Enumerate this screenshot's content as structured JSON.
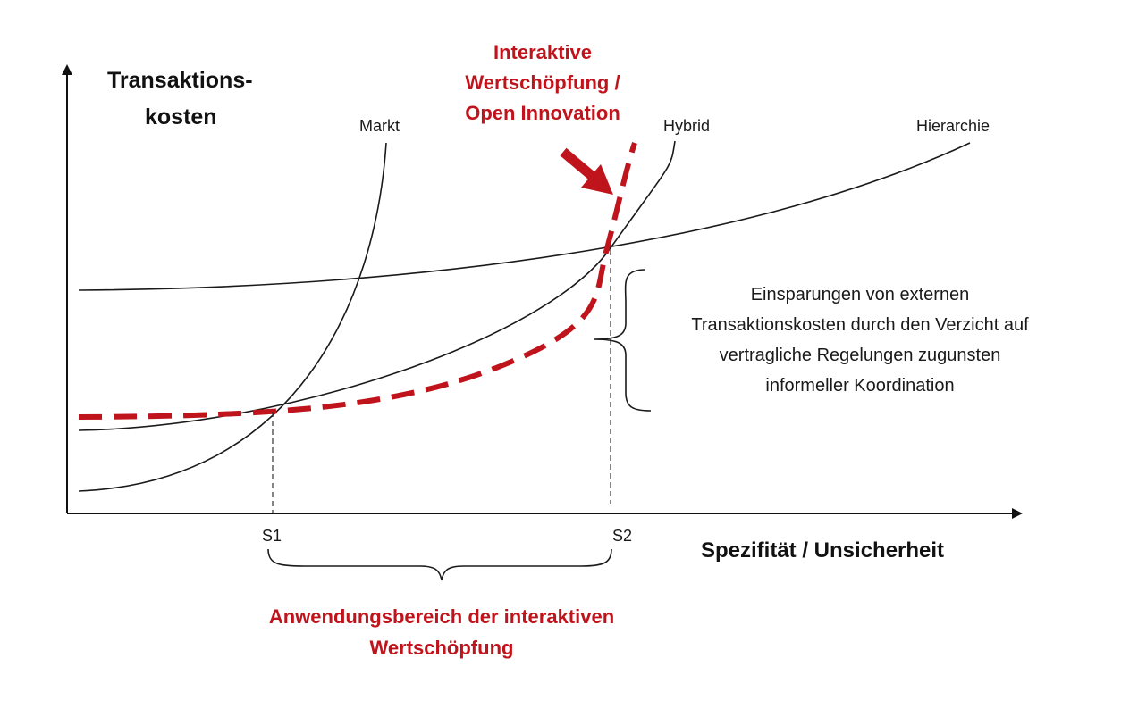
{
  "axes": {
    "y_title_line1": "Transaktions-",
    "y_title_line2": "kosten",
    "x_title": "Spezifität / Unsicherheit"
  },
  "curves": {
    "markt": "Markt",
    "hybrid": "Hybrid",
    "hierarchie": "Hierarchie"
  },
  "points": {
    "s1": "S1",
    "s2": "S2"
  },
  "interactive_label": {
    "line1": "Interaktive",
    "line2": "Wertschöpfung /",
    "line3": "Open Innovation"
  },
  "savings_note": {
    "line1": "Einsparungen von externen",
    "line2": "Transaktionskosten durch den Verzicht auf",
    "line3": "vertragliche Regelungen zugunsten",
    "line4": "informeller Koordination"
  },
  "application_range": {
    "line1": "Anwendungsbereich der interaktiven",
    "line2": "Wertschöpfung"
  },
  "colors": {
    "accent_red": "#c0141c",
    "line_dark": "#1a1a1a"
  }
}
